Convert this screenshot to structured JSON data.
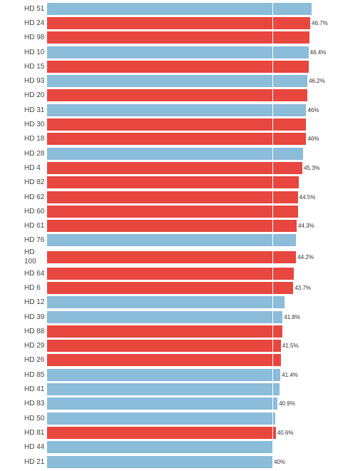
{
  "chart_data": {
    "type": "barh",
    "categories": [
      "HD 51",
      "HD 24",
      "HD 98",
      "HD 10",
      "HD 15",
      "HD 93",
      "HD 20",
      "HD 31",
      "HD 30",
      "HD 18",
      "HD 28",
      "HD 4",
      "HD 82",
      "HD 62",
      "HD 60",
      "HD 61",
      "HD 76",
      "HD 100",
      "HD 64",
      "HD 6",
      "HD 12",
      "HD 39",
      "HD 88",
      "HD 29",
      "HD 26",
      "HD 85",
      "HD 41",
      "HD 83",
      "HD 50",
      "HD 81",
      "HD 44",
      "HD 21"
    ],
    "values": [
      46.9,
      46.7,
      46.6,
      46.4,
      46.4,
      46.2,
      46.2,
      46.0,
      46.0,
      46.0,
      45.4,
      45.3,
      44.7,
      44.5,
      44.5,
      44.3,
      44.2,
      44.2,
      43.8,
      43.7,
      42.1,
      41.8,
      41.7,
      41.5,
      41.5,
      41.4,
      41.2,
      40.9,
      40.5,
      40.6,
      40.0,
      40.0
    ],
    "value_labels": [
      null,
      "46.7%",
      null,
      "46.4%",
      null,
      "46.2%",
      null,
      "46%",
      null,
      "46%",
      null,
      "45.3%",
      null,
      "44.5%",
      null,
      "44.3%",
      null,
      "44.2%",
      null,
      "43.7%",
      null,
      "41.8%",
      null,
      "41.5%",
      null,
      "41.4%",
      null,
      "40.9%",
      null,
      "40.6%",
      null,
      "40%"
    ],
    "colors": [
      "#8bbcda",
      "#e8473f",
      "#e8473f",
      "#8bbcda",
      "#e8473f",
      "#8bbcda",
      "#e8473f",
      "#8bbcda",
      "#e8473f",
      "#e8473f",
      "#8bbcda",
      "#e8473f",
      "#e8473f",
      "#e8473f",
      "#e8473f",
      "#e8473f",
      "#8bbcda",
      "#e8473f",
      "#e8473f",
      "#e8473f",
      "#8bbcda",
      "#8bbcda",
      "#e8473f",
      "#e8473f",
      "#e8473f",
      "#8bbcda",
      "#8bbcda",
      "#8bbcda",
      "#8bbcda",
      "#e8473f",
      "#8bbcda",
      "#8bbcda"
    ],
    "xlim": [
      0,
      51
    ],
    "reference_line": 40
  }
}
